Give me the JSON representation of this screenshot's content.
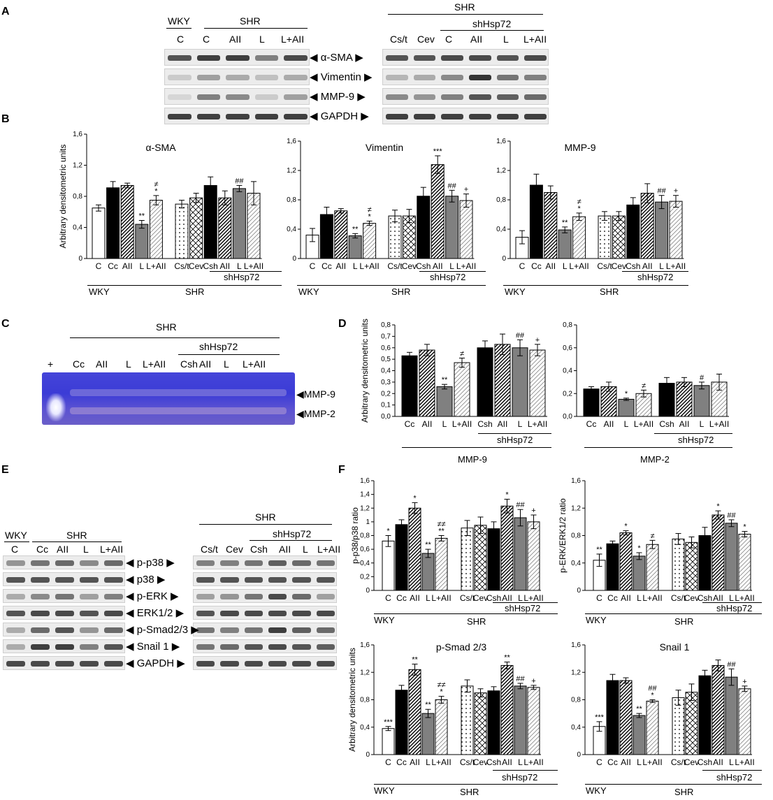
{
  "panels": {
    "A": "A",
    "B": "B",
    "C": "C",
    "D": "D",
    "E": "E",
    "F": "F"
  },
  "common": {
    "WKY": "WKY",
    "SHR": "SHR",
    "shHsp72": "shHsp72",
    "C": "C",
    "AII": "AII",
    "L": "L",
    "LAII": "L+AII",
    "Cc": "Cc",
    "Csh": "Csh",
    "Cst": "Cs/t",
    "Cev": "Cev",
    "plus": "+"
  },
  "panelA": {
    "markers": [
      "α-SMA",
      "Vimentin",
      "MMP-9",
      "GAPDH"
    ],
    "left_lanes": [
      "C",
      "C",
      "AII",
      "L",
      "L+AII"
    ],
    "right_lanes": [
      "Cs/t",
      "Cev",
      "C",
      "AII",
      "L",
      "L+AII"
    ]
  },
  "panelC": {
    "markers": [
      "MMP-9",
      "MMP-2"
    ]
  },
  "panelE": {
    "markers": [
      "p-p38",
      "p38",
      "p-ERK",
      "ERK1/2",
      "p-Smad2/3",
      "Snail 1",
      "GAPDH"
    ],
    "left_lanes": [
      "C",
      "Cc",
      "AII",
      "L",
      "L+AII"
    ],
    "right_lanes": [
      "Cs/t",
      "Cev",
      "Csh",
      "AII",
      "L",
      "L+AII"
    ]
  },
  "chart_data": [
    {
      "id": "B1",
      "type": "bar",
      "title": "α-SMA",
      "ylabel": "Arbitrary densitometric units",
      "ylim": [
        0,
        1.6
      ],
      "yticks": [
        "0",
        "0,4",
        "0,8",
        "1,2",
        "1,6"
      ],
      "categories": [
        "C",
        "Cc",
        "AII",
        "L",
        "L+AII",
        "Cs/t",
        "Cev",
        "Csh",
        "AII",
        "L",
        "L+AII"
      ],
      "values": [
        0.65,
        0.91,
        0.94,
        0.44,
        0.75,
        0.7,
        0.78,
        0.94,
        0.78,
        0.9,
        0.84
      ],
      "errors": [
        0.04,
        0.08,
        0.03,
        0.05,
        0.06,
        0.05,
        0.06,
        0.11,
        0.09,
        0.04,
        0.15
      ],
      "annotations": [
        "",
        "",
        "",
        "**",
        "≠\n*",
        "",
        "",
        "",
        "",
        "##",
        ""
      ]
    },
    {
      "id": "B2",
      "type": "bar",
      "title": "Vimentin",
      "ylabel": "",
      "ylim": [
        0,
        1.6
      ],
      "yticks": [
        "0",
        "0,4",
        "0,8",
        "1,2",
        "1,6"
      ],
      "categories": [
        "C",
        "Cc",
        "AII",
        "L",
        "L+AII",
        "Cs/t",
        "Cev",
        "Csh",
        "AII",
        "L",
        "L+AII"
      ],
      "values": [
        0.32,
        0.6,
        0.65,
        0.31,
        0.48,
        0.58,
        0.58,
        0.85,
        1.28,
        0.85,
        0.79
      ],
      "errors": [
        0.09,
        0.1,
        0.03,
        0.03,
        0.03,
        0.08,
        0.09,
        0.12,
        0.12,
        0.08,
        0.09
      ],
      "annotations": [
        "",
        "",
        "",
        "**",
        "≠\n*",
        "",
        "",
        "",
        "***",
        "##",
        "+"
      ]
    },
    {
      "id": "B3",
      "type": "bar",
      "title": "MMP-9",
      "ylabel": "",
      "ylim": [
        0,
        1.6
      ],
      "yticks": [
        "0",
        "0,4",
        "0,8",
        "1,2",
        "1,6"
      ],
      "categories": [
        "C",
        "Cc",
        "AII",
        "L",
        "L+AII",
        "Cs/t",
        "Cev",
        "Csh",
        "AII",
        "L",
        "L+AII"
      ],
      "values": [
        0.29,
        1.0,
        0.9,
        0.39,
        0.57,
        0.58,
        0.58,
        0.73,
        0.89,
        0.77,
        0.78
      ],
      "errors": [
        0.09,
        0.15,
        0.09,
        0.04,
        0.05,
        0.06,
        0.06,
        0.1,
        0.13,
        0.09,
        0.08
      ],
      "annotations": [
        "",
        "",
        "",
        "**",
        "≠\n*",
        "",
        "",
        "",
        "",
        "##",
        "+"
      ]
    },
    {
      "id": "D1",
      "type": "bar",
      "title": "",
      "xlabel": "MMP-9",
      "ylabel": "Arbitrary densitometric units",
      "ylim": [
        0,
        0.8
      ],
      "yticks": [
        "0,0",
        "0,1",
        "0,2",
        "0,3",
        "0,4",
        "0,5",
        "0,6",
        "0,7",
        "0,8"
      ],
      "categories": [
        "Cc",
        "AII",
        "L",
        "L+AII",
        "Csh",
        "AII",
        "L",
        "L+AII"
      ],
      "values": [
        0.53,
        0.58,
        0.26,
        0.47,
        0.6,
        0.63,
        0.6,
        0.58
      ],
      "errors": [
        0.03,
        0.05,
        0.02,
        0.04,
        0.06,
        0.09,
        0.07,
        0.05
      ],
      "annotations": [
        "",
        "",
        "**",
        "≠",
        "",
        "",
        "##",
        "+"
      ]
    },
    {
      "id": "D2",
      "type": "bar",
      "title": "",
      "xlabel": "MMP-2",
      "ylabel": "",
      "ylim": [
        0,
        0.8
      ],
      "yticks": [
        "0,0",
        "0,2",
        "0,4",
        "0,6",
        "0,8"
      ],
      "categories": [
        "Cc",
        "AII",
        "L",
        "L+AII",
        "Csh",
        "AII",
        "L",
        "L+AII"
      ],
      "values": [
        0.24,
        0.26,
        0.15,
        0.2,
        0.29,
        0.3,
        0.27,
        0.3
      ],
      "errors": [
        0.02,
        0.04,
        0.01,
        0.03,
        0.05,
        0.04,
        0.03,
        0.07
      ],
      "annotations": [
        "",
        "",
        "*",
        "≠",
        "",
        "",
        "#",
        ""
      ]
    },
    {
      "id": "F1",
      "type": "bar",
      "title": "",
      "ylabel": "p-p38/p38 ratio",
      "ylim": [
        0,
        1.6
      ],
      "yticks": [
        "0",
        "0,2",
        "0,4",
        "0,6",
        "0,8",
        "1",
        "1,2",
        "1,4",
        "1,6"
      ],
      "categories": [
        "C",
        "Cc",
        "AII",
        "L",
        "L+AII",
        "Cs/t",
        "Cev",
        "Csh",
        "AII",
        "L",
        "L+AII"
      ],
      "values": [
        0.72,
        0.96,
        1.2,
        0.54,
        0.76,
        0.91,
        0.95,
        0.9,
        1.23,
        1.06,
        1.0
      ],
      "errors": [
        0.08,
        0.07,
        0.08,
        0.06,
        0.04,
        0.11,
        0.12,
        0.1,
        0.1,
        0.12,
        0.1
      ],
      "annotations": [
        "*",
        "",
        "*",
        "**",
        "≠≠\n**",
        "",
        "",
        "",
        "*",
        "##",
        "+"
      ]
    },
    {
      "id": "F2",
      "type": "bar",
      "title": "",
      "ylabel": "p-ERK/ERK1/2 ratio",
      "ylim": [
        0,
        1.6
      ],
      "yticks": [
        "0",
        "0,4",
        "0,8",
        "1,2",
        "1,6"
      ],
      "categories": [
        "C",
        "Cc",
        "AII",
        "L",
        "L+AII",
        "Cs/t",
        "Cev",
        "Csh",
        "AII",
        "L",
        "L+AII"
      ],
      "values": [
        0.44,
        0.68,
        0.84,
        0.5,
        0.67,
        0.75,
        0.7,
        0.8,
        1.1,
        0.98,
        0.82
      ],
      "errors": [
        0.09,
        0.04,
        0.03,
        0.05,
        0.06,
        0.08,
        0.08,
        0.12,
        0.06,
        0.05,
        0.04
      ],
      "annotations": [
        "**",
        "",
        "*",
        "*",
        "≠",
        "",
        "",
        "",
        "*",
        "##",
        "*"
      ]
    },
    {
      "id": "F3",
      "type": "bar",
      "title": "p-Smad 2/3",
      "ylabel": "Arbitrary densitometric units",
      "ylim": [
        0,
        1.6
      ],
      "yticks": [
        "0",
        "0,4",
        "0,8",
        "1,2",
        "1,6"
      ],
      "categories": [
        "C",
        "Cc",
        "AII",
        "L",
        "L+AII",
        "Cs/t",
        "Cev",
        "Csh",
        "AII",
        "L",
        "L+AII"
      ],
      "values": [
        0.38,
        0.94,
        1.24,
        0.6,
        0.8,
        1.0,
        0.9,
        0.93,
        1.3,
        1.0,
        0.98
      ],
      "errors": [
        0.03,
        0.07,
        0.08,
        0.06,
        0.05,
        0.09,
        0.06,
        0.06,
        0.05,
        0.04,
        0.03
      ],
      "annotations": [
        "***",
        "",
        "**",
        "**",
        "≠≠\n*",
        "",
        "",
        "",
        "**",
        "##",
        "+"
      ]
    },
    {
      "id": "F4",
      "type": "bar",
      "title": "Snail 1",
      "ylabel": "",
      "ylim": [
        0,
        1.6
      ],
      "yticks": [
        "0",
        "0,4",
        "0,8",
        "1,2",
        "1,6"
      ],
      "categories": [
        "C",
        "Cc",
        "AII",
        "L",
        "L+AII",
        "Cs/t",
        "Cev",
        "Csh",
        "AII",
        "L",
        "L+AII"
      ],
      "values": [
        0.41,
        1.08,
        1.08,
        0.57,
        0.78,
        0.83,
        0.91,
        1.15,
        1.3,
        1.13,
        0.96
      ],
      "errors": [
        0.07,
        0.09,
        0.04,
        0.03,
        0.02,
        0.11,
        0.12,
        0.08,
        0.08,
        0.12,
        0.04
      ],
      "annotations": [
        "***",
        "",
        "",
        "**",
        "##\n*",
        "",
        "",
        "",
        "",
        "##",
        "+"
      ]
    }
  ],
  "colors": {
    "black": "#000000",
    "gray": "#808080",
    "white": "#ffffff",
    "gel_blue": "#3b3bd6"
  }
}
